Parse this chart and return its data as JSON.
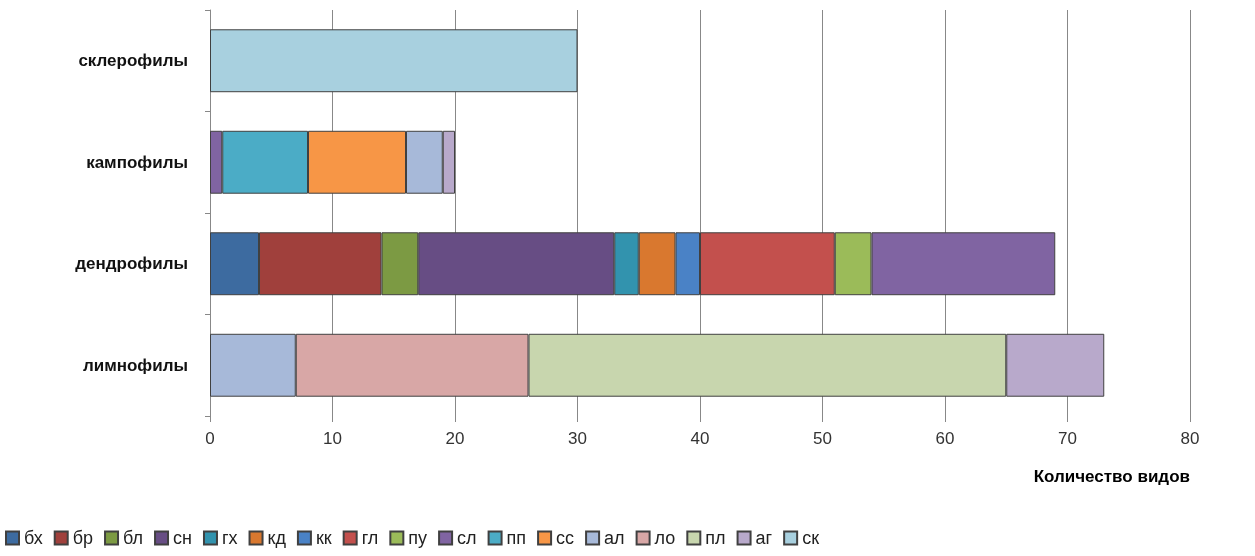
{
  "chart_data": {
    "type": "bar",
    "orientation": "horizontal",
    "stacked": true,
    "xlabel": "Количество видов",
    "categories": [
      "склерофилы",
      "кампофилы",
      "дендрофилы",
      "лимнофилы"
    ],
    "xlim": [
      0,
      80
    ],
    "xticks": [
      0,
      10,
      20,
      30,
      40,
      50,
      60,
      70,
      80
    ],
    "grid": "x",
    "legend": "bottom",
    "series": [
      {
        "name": "бх",
        "color": "#3d6ba0",
        "values": [
          null,
          null,
          4,
          null
        ]
      },
      {
        "name": "бр",
        "color": "#a0403c",
        "values": [
          null,
          null,
          10,
          null
        ]
      },
      {
        "name": "бл",
        "color": "#7c9a43",
        "values": [
          null,
          null,
          3,
          null
        ]
      },
      {
        "name": "сн",
        "color": "#674d84",
        "values": [
          null,
          null,
          16,
          null
        ]
      },
      {
        "name": "гх",
        "color": "#3293ae",
        "values": [
          null,
          null,
          2,
          null
        ]
      },
      {
        "name": "кд",
        "color": "#d9782f",
        "values": [
          null,
          null,
          3,
          null
        ]
      },
      {
        "name": "кк",
        "color": "#4a82c6",
        "values": [
          null,
          null,
          2,
          null
        ]
      },
      {
        "name": "гл",
        "color": "#c3504d",
        "values": [
          null,
          null,
          11,
          null
        ]
      },
      {
        "name": "пу",
        "color": "#9bbb59",
        "values": [
          null,
          null,
          3,
          null
        ]
      },
      {
        "name": "сл",
        "color": "#8064a2",
        "values": [
          null,
          1,
          15,
          null
        ]
      },
      {
        "name": "пп",
        "color": "#4bacc6",
        "values": [
          null,
          7,
          null,
          null
        ]
      },
      {
        "name": "сс",
        "color": "#f79646",
        "values": [
          null,
          8,
          null,
          null
        ]
      },
      {
        "name": "ал",
        "color": "#a7b9d9",
        "values": [
          null,
          3,
          null,
          7
        ]
      },
      {
        "name": "ло",
        "color": "#d8a7a6",
        "values": [
          null,
          null,
          null,
          19
        ]
      },
      {
        "name": "пл",
        "color": "#c8d6ae",
        "values": [
          null,
          null,
          null,
          39
        ]
      },
      {
        "name": "аг",
        "color": "#b8a9cb",
        "values": [
          null,
          1,
          null,
          8
        ]
      },
      {
        "name": "ск",
        "color": "#a8d0df",
        "values": [
          30,
          null,
          null,
          null
        ]
      }
    ]
  }
}
